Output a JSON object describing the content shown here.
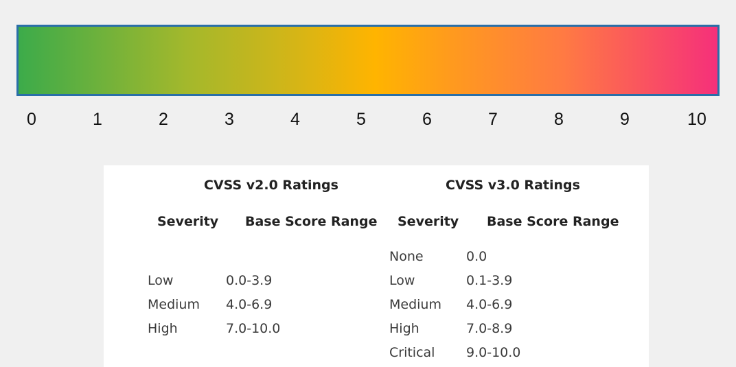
{
  "scale": {
    "ticks": [
      "0",
      "1",
      "2",
      "3",
      "4",
      "5",
      "6",
      "7",
      "8",
      "9",
      "10"
    ],
    "gradient_colors": [
      "#3cab4a",
      "#a3b82c",
      "#d6b516",
      "#ffb400",
      "#ff9a1e",
      "#ff7a43",
      "#f5307a"
    ],
    "border_color": "#2a6fa8"
  },
  "table": {
    "v2": {
      "title": "CVSS v2.0 Ratings",
      "severity_header": "Severity",
      "range_header": "Base Score Range",
      "rows": [
        {
          "severity": "Low",
          "range": "0.0-3.9"
        },
        {
          "severity": "Medium",
          "range": "4.0-6.9"
        },
        {
          "severity": "High",
          "range": "7.0-10.0"
        }
      ]
    },
    "v3": {
      "title": "CVSS v3.0 Ratings",
      "severity_header": "Severity",
      "range_header": "Base Score Range",
      "rows": [
        {
          "severity": "None",
          "range": "0.0"
        },
        {
          "severity": "Low",
          "range": "0.1-3.9"
        },
        {
          "severity": "Medium",
          "range": "4.0-6.9"
        },
        {
          "severity": "High",
          "range": "7.0-8.9"
        },
        {
          "severity": "Critical",
          "range": "9.0-10.0"
        }
      ]
    }
  }
}
